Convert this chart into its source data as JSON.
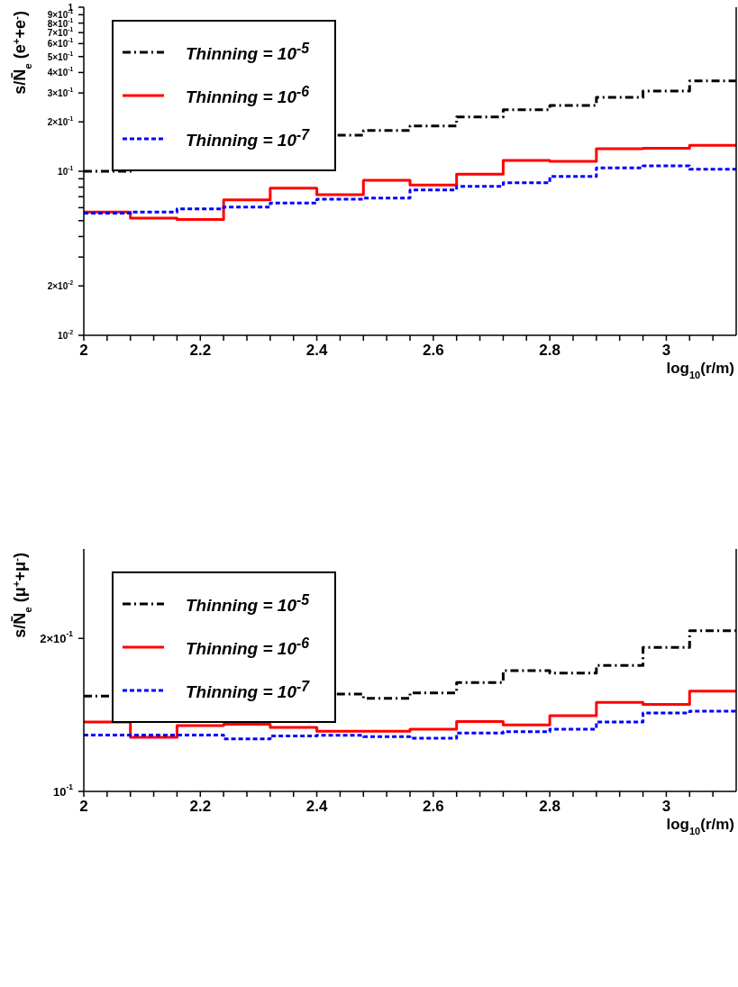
{
  "chart_data": [
    {
      "type": "histogram",
      "xlabel": "log$_{10}$(r/m)",
      "ylabel": "s/N̄$_{e}$ (e$^{+}$+e$^{-}$)",
      "log": "y",
      "legend": "top left",
      "bins": [
        2,
        2.08,
        2.16,
        2.24,
        2.32,
        2.4,
        2.48,
        2.56,
        2.64,
        2.72,
        2.8,
        2.88,
        2.96,
        3.04,
        3.12
      ],
      "xlim": [
        2,
        3.12
      ],
      "xticks": [
        2,
        {
          "value": 2.04,
          "label": null
        },
        {
          "value": 2.08,
          "label": null
        },
        {
          "value": 2.12,
          "label": null
        },
        {
          "value": 2.16,
          "label": null
        },
        2.2,
        {
          "value": 2.24,
          "label": null
        },
        {
          "value": 2.28,
          "label": null
        },
        {
          "value": 2.32,
          "label": null
        },
        {
          "value": 2.36,
          "label": null
        },
        2.4,
        {
          "value": 2.44,
          "label": null
        },
        {
          "value": 2.48,
          "label": null
        },
        {
          "value": 2.52,
          "label": null
        },
        {
          "value": 2.56,
          "label": null
        },
        2.6,
        {
          "value": 2.64,
          "label": null
        },
        {
          "value": 2.68,
          "label": null
        },
        {
          "value": 2.72,
          "label": null
        },
        {
          "value": 2.76,
          "label": null
        },
        2.8,
        {
          "value": 2.84,
          "label": null
        },
        {
          "value": 2.88,
          "label": null
        },
        {
          "value": 2.92,
          "label": null
        },
        {
          "value": 2.96,
          "label": null
        },
        3,
        {
          "value": 3.04,
          "label": null
        },
        {
          "value": 3.08,
          "label": null
        }
      ],
      "ylim": [
        0.01,
        1
      ],
      "yticks": [
        {
          "value": 0.01,
          "label": "10$^{-2}$"
        },
        {
          "value": 0.02,
          "label": "2×10$^{-2}$"
        },
        {
          "value": 0.03,
          "label": null
        },
        {
          "value": 0.04,
          "label": null
        },
        {
          "value": 0.05,
          "label": null
        },
        {
          "value": 0.06,
          "label": null
        },
        {
          "value": 0.07,
          "label": null
        },
        {
          "value": 0.08,
          "label": null
        },
        {
          "value": 0.09,
          "label": null
        },
        {
          "value": 0.1,
          "label": "10$^{-1}$"
        },
        {
          "value": 0.2,
          "label": "2×10$^{-1}$"
        },
        {
          "value": 0.3,
          "label": "3×10$^{-1}$"
        },
        {
          "value": 0.4,
          "label": "4×10$^{-1}$"
        },
        {
          "value": 0.5,
          "label": "5×10$^{-1}$"
        },
        {
          "value": 0.6,
          "label": "6×10$^{-1}$"
        },
        {
          "value": 0.7,
          "label": "7×10$^{-1}$"
        },
        {
          "value": 0.8,
          "label": "8×10$^{-1}$"
        },
        {
          "value": 0.9,
          "label": "9×10$^{-1}$"
        },
        1
      ],
      "series": [
        {
          "name": "Thinning = 10$^{-5}$",
          "color": "#000000",
          "line_style": "dashed",
          "values": [
            0.1,
            0.111,
            0.124,
            0.123,
            0.143,
            0.166,
            0.177,
            0.189,
            0.214,
            0.237,
            0.252,
            0.282,
            0.308,
            0.355
          ]
        },
        {
          "name": "Thinning = 10$^{-6}$",
          "color": "#ff0000",
          "line_style": "solid",
          "values": [
            0.0565,
            0.0518,
            0.0508,
            0.067,
            0.079,
            0.072,
            0.088,
            0.0825,
            0.096,
            0.1165,
            0.115,
            0.137,
            0.138,
            0.144
          ]
        },
        {
          "name": "Thinning = 10$^{-7}$",
          "color": "#0000ff",
          "line_style": "dotted",
          "values": [
            0.0555,
            0.0565,
            0.059,
            0.0605,
            0.064,
            0.0675,
            0.0687,
            0.077,
            0.081,
            0.085,
            0.093,
            0.105,
            0.108,
            0.103
          ]
        }
      ]
    },
    {
      "type": "histogram",
      "xlabel": "log$_{10}$(r/m)",
      "ylabel": "s/N̄$_{e}$ (μ$^{+}$+μ$^{-}$)",
      "log": "y",
      "legend": "top left",
      "bins": [
        2,
        2.08,
        2.16,
        2.24,
        2.32,
        2.4,
        2.48,
        2.56,
        2.64,
        2.72,
        2.8,
        2.88,
        2.96,
        3.04,
        3.12
      ],
      "xlim": [
        2,
        3.12
      ],
      "xticks": [
        2,
        {
          "value": 2.04,
          "label": null
        },
        {
          "value": 2.08,
          "label": null
        },
        {
          "value": 2.12,
          "label": null
        },
        {
          "value": 2.16,
          "label": null
        },
        2.2,
        {
          "value": 2.24,
          "label": null
        },
        {
          "value": 2.28,
          "label": null
        },
        {
          "value": 2.32,
          "label": null
        },
        {
          "value": 2.36,
          "label": null
        },
        2.4,
        {
          "value": 2.44,
          "label": null
        },
        {
          "value": 2.48,
          "label": null
        },
        {
          "value": 2.52,
          "label": null
        },
        {
          "value": 2.56,
          "label": null
        },
        2.6,
        {
          "value": 2.64,
          "label": null
        },
        {
          "value": 2.68,
          "label": null
        },
        {
          "value": 2.72,
          "label": null
        },
        {
          "value": 2.76,
          "label": null
        },
        2.8,
        {
          "value": 2.84,
          "label": null
        },
        {
          "value": 2.88,
          "label": null
        },
        {
          "value": 2.92,
          "label": null
        },
        {
          "value": 2.96,
          "label": null
        },
        3,
        {
          "value": 3.04,
          "label": null
        },
        {
          "value": 3.08,
          "label": null
        }
      ],
      "ylim": [
        0.1,
        0.3
      ],
      "yticks": [
        {
          "value": 0.1,
          "label": "10$^{-1}$"
        },
        {
          "value": 0.2,
          "label": "2×10$^{-1}$"
        }
      ],
      "series": [
        {
          "name": "Thinning = 10$^{-5}$",
          "color": "#000000",
          "line_style": "dashed",
          "values": [
            0.154,
            0.149,
            0.1555,
            0.157,
            0.1496,
            0.1555,
            0.1525,
            0.1563,
            0.1637,
            0.1728,
            0.171,
            0.177,
            0.192,
            0.207
          ]
        },
        {
          "name": "Thinning = 10$^{-6}$",
          "color": "#ff0000",
          "line_style": "solid",
          "values": [
            0.137,
            0.1278,
            0.1348,
            0.1355,
            0.1336,
            0.1314,
            0.1313,
            0.1326,
            0.1372,
            0.1352,
            0.1409,
            0.1496,
            0.1483,
            0.1575
          ]
        },
        {
          "name": "Thinning = 10$^{-7}$",
          "color": "#0000ff",
          "line_style": "dotted",
          "values": [
            0.1291,
            0.1291,
            0.1291,
            0.1268,
            0.1286,
            0.1289,
            0.1281,
            0.1272,
            0.1303,
            0.1311,
            0.1326,
            0.137,
            0.1426,
            0.1438
          ]
        }
      ]
    }
  ]
}
